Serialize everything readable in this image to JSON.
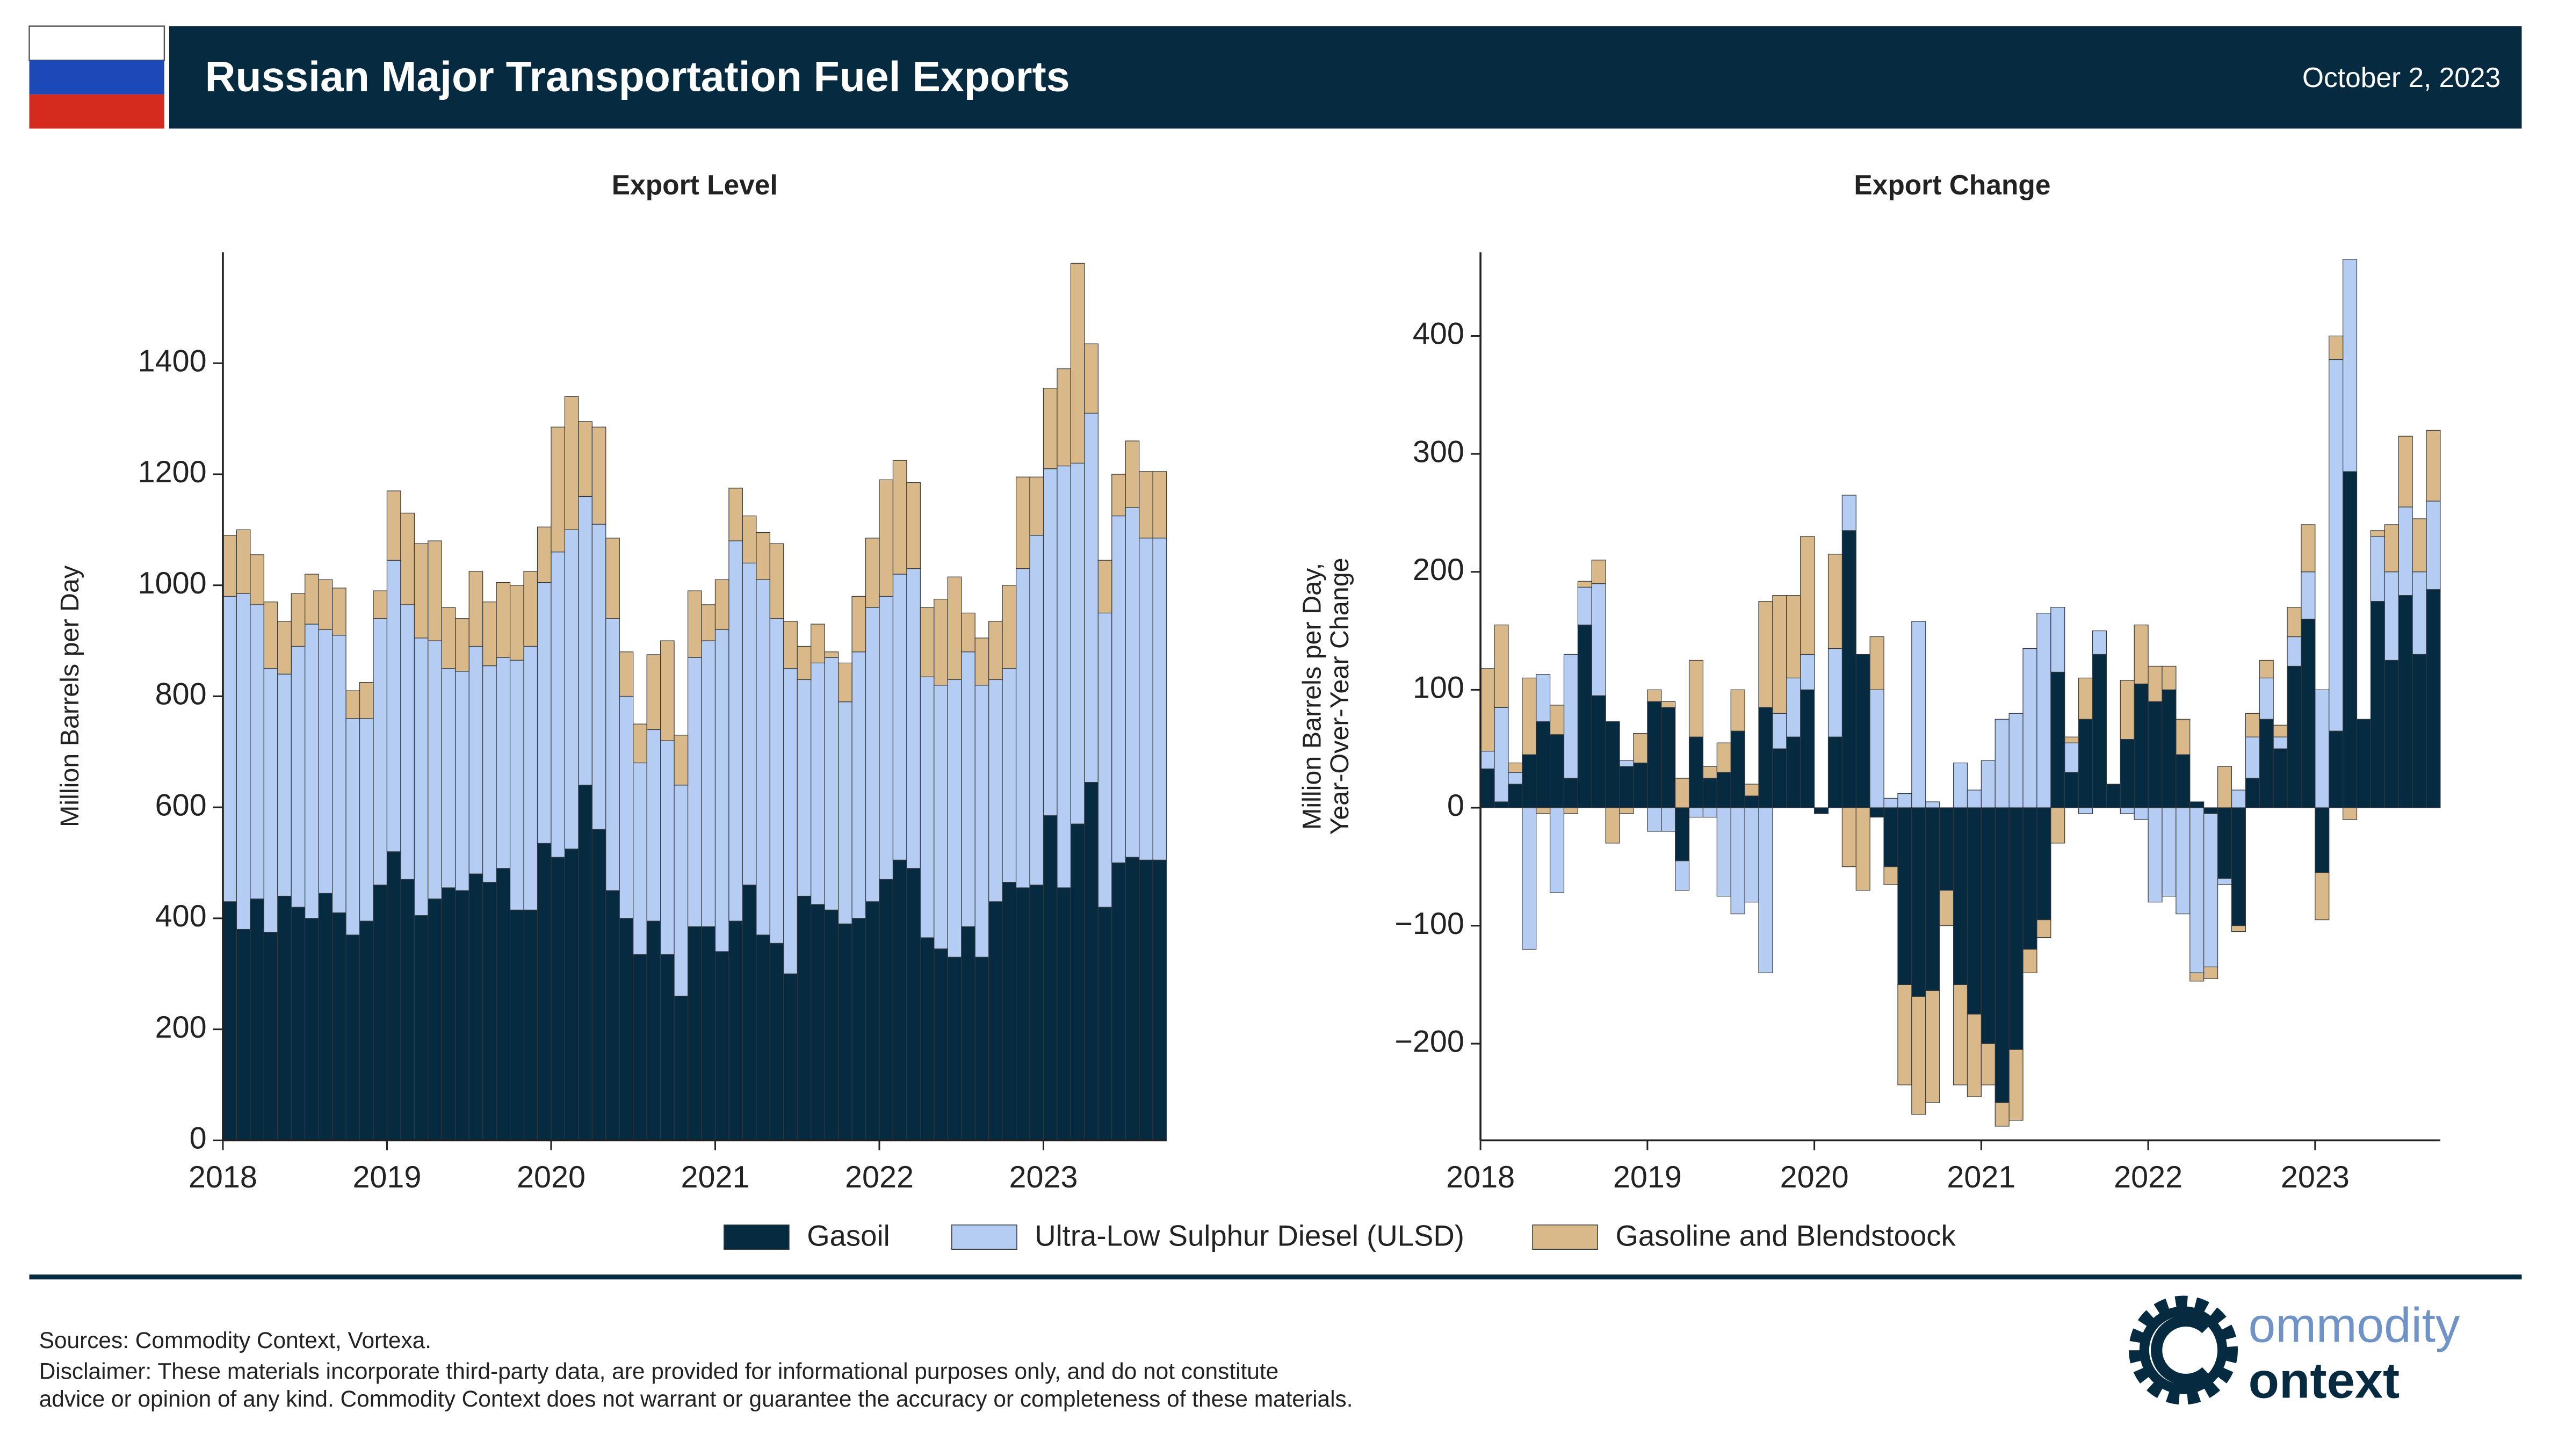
{
  "header": {
    "title": "Russian Major Transportation Fuel Exports",
    "date": "October 2, 2023"
  },
  "chart_data": [
    {
      "type": "bar",
      "stacked": true,
      "title": "Export Level",
      "ylabel": [
        "Million Barrels per Day"
      ],
      "categories": [
        "2018",
        null,
        null,
        null,
        null,
        null,
        null,
        null,
        null,
        null,
        null,
        null,
        "2019",
        null,
        null,
        null,
        null,
        null,
        null,
        null,
        null,
        null,
        null,
        null,
        "2020",
        null,
        null,
        null,
        null,
        null,
        null,
        null,
        null,
        null,
        null,
        null,
        "2021",
        null,
        null,
        null,
        null,
        null,
        null,
        null,
        null,
        null,
        null,
        null,
        "2022",
        null,
        null,
        null,
        null,
        null,
        null,
        null,
        null,
        null,
        null,
        null,
        "2023",
        null,
        null,
        null,
        null,
        null,
        null,
        null,
        null
      ],
      "ylim": [
        0,
        1600
      ],
      "yticks": [
        0,
        200,
        400,
        600,
        800,
        1000,
        1200,
        1400
      ],
      "series": [
        {
          "name": "Gasoil",
          "color": "#062a40",
          "values": [
            430,
            380,
            435,
            375,
            440,
            420,
            400,
            445,
            410,
            370,
            395,
            460,
            520,
            470,
            405,
            435,
            455,
            450,
            480,
            465,
            490,
            415,
            415,
            535,
            510,
            525,
            640,
            560,
            450,
            400,
            335,
            395,
            335,
            260,
            385,
            385,
            340,
            395,
            460,
            370,
            355,
            300,
            440,
            425,
            415,
            390,
            400,
            430,
            470,
            505,
            490,
            365,
            345,
            330,
            385,
            330,
            430,
            465,
            455,
            460,
            585,
            455,
            570,
            645,
            420,
            500,
            510,
            505,
            505
          ]
        },
        {
          "name": "Ultra-Low Sulphur Diesel (ULSD)",
          "color": "#b5cdf2",
          "values": [
            550,
            605,
            530,
            475,
            400,
            470,
            530,
            475,
            500,
            390,
            365,
            480,
            525,
            495,
            500,
            465,
            395,
            395,
            410,
            390,
            380,
            450,
            475,
            470,
            550,
            575,
            520,
            550,
            490,
            400,
            345,
            345,
            385,
            380,
            485,
            515,
            580,
            685,
            580,
            640,
            585,
            550,
            390,
            435,
            455,
            400,
            480,
            530,
            510,
            515,
            540,
            470,
            475,
            500,
            495,
            490,
            400,
            385,
            575,
            630,
            625,
            760,
            650,
            665,
            530,
            625,
            630,
            580,
            580
          ]
        },
        {
          "name": "Gasoline and Blendstoock",
          "color": "#d9b98a",
          "values": [
            110,
            115,
            90,
            120,
            95,
            95,
            90,
            90,
            85,
            50,
            65,
            50,
            125,
            165,
            170,
            180,
            110,
            95,
            135,
            115,
            135,
            135,
            135,
            100,
            225,
            240,
            135,
            175,
            145,
            80,
            70,
            135,
            180,
            90,
            120,
            65,
            90,
            95,
            85,
            85,
            135,
            85,
            60,
            70,
            10,
            70,
            100,
            125,
            210,
            205,
            155,
            125,
            155,
            185,
            70,
            85,
            105,
            150,
            165,
            105,
            145,
            175,
            360,
            125,
            95,
            75,
            120,
            120,
            120
          ]
        }
      ]
    },
    {
      "type": "bar",
      "stacked": true,
      "title": "Export Change",
      "ylabel": [
        "Million Barrels per Day,",
        "Year-Over-Year Change"
      ],
      "categories": [
        "2018",
        null,
        null,
        null,
        null,
        null,
        null,
        null,
        null,
        null,
        null,
        null,
        "2019",
        null,
        null,
        null,
        null,
        null,
        null,
        null,
        null,
        null,
        null,
        null,
        "2020",
        null,
        null,
        null,
        null,
        null,
        null,
        null,
        null,
        null,
        null,
        null,
        "2021",
        null,
        null,
        null,
        null,
        null,
        null,
        null,
        null,
        null,
        null,
        null,
        "2022",
        null,
        null,
        null,
        null,
        null,
        null,
        null,
        null,
        null,
        null,
        null,
        "2023",
        null,
        null,
        null,
        null,
        null,
        null,
        null,
        null
      ],
      "ylim": [
        -282,
        471
      ],
      "yticks": [
        {
          "value": -200,
          "label": "−200"
        },
        {
          "value": -100,
          "label": "−100"
        },
        0,
        100,
        200,
        300,
        400
      ],
      "series": [
        {
          "name": "Gasoil",
          "color": "#062a40",
          "values": [
            33,
            5,
            20,
            45,
            73,
            62,
            25,
            155,
            95,
            73,
            35,
            38,
            90,
            85,
            -45,
            60,
            25,
            30,
            65,
            10,
            85,
            50,
            60,
            100,
            -5,
            60,
            235,
            130,
            -8,
            -50,
            -150,
            -160,
            -155,
            -70,
            -150,
            -175,
            -200,
            -250,
            -205,
            -120,
            -95,
            115,
            30,
            75,
            130,
            20,
            58,
            105,
            90,
            100,
            45,
            5,
            -5,
            -60,
            -100,
            25,
            75,
            50,
            120,
            160,
            -55,
            65,
            285,
            75,
            175,
            125,
            180,
            130,
            185
          ]
        },
        {
          "name": "Ultra-Low Sulphur Diesel (ULSD)",
          "color": "#b5cdf2",
          "values": [
            15,
            80,
            10,
            -120,
            40,
            -72,
            105,
            32,
            95,
            0,
            5,
            0,
            -20,
            -20,
            -25,
            -8,
            -8,
            -75,
            -90,
            -80,
            -140,
            30,
            50,
            30,
            0,
            75,
            30,
            0,
            100,
            8,
            12,
            158,
            5,
            0,
            38,
            15,
            40,
            75,
            80,
            135,
            165,
            55,
            25,
            -5,
            20,
            0,
            -5,
            -10,
            -80,
            -75,
            -90,
            -140,
            -130,
            -5,
            15,
            35,
            35,
            10,
            25,
            40,
            100,
            315,
            180,
            0,
            55,
            75,
            75,
            70,
            75
          ]
        },
        {
          "name": "Gasoline and Blendstoock",
          "color": "#d9b98a",
          "values": [
            70,
            70,
            8,
            65,
            -5,
            25,
            -5,
            5,
            20,
            -30,
            -5,
            25,
            10,
            5,
            25,
            65,
            10,
            25,
            35,
            10,
            90,
            100,
            70,
            100,
            0,
            80,
            -50,
            -70,
            45,
            -15,
            -85,
            -100,
            -95,
            -30,
            -85,
            -70,
            -35,
            -20,
            -60,
            -20,
            -15,
            -30,
            5,
            35,
            0,
            0,
            50,
            50,
            30,
            20,
            30,
            -7,
            -10,
            35,
            -5,
            20,
            15,
            10,
            25,
            40,
            -40,
            20,
            -10,
            0,
            5,
            40,
            60,
            45,
            60
          ]
        }
      ]
    }
  ],
  "footer": {
    "sources": "Sources: Commodity Context, Vortexa.",
    "disclaimer": [
      "Disclaimer: These materials incorporate third-party data, are provided for informational purposes only, and do not constitute",
      "advice or opinion of any kind. Commodity Context does not warrant or guarantee the accuracy or completeness of these materials."
    ],
    "logo": [
      "ommodity",
      "ontext"
    ]
  }
}
